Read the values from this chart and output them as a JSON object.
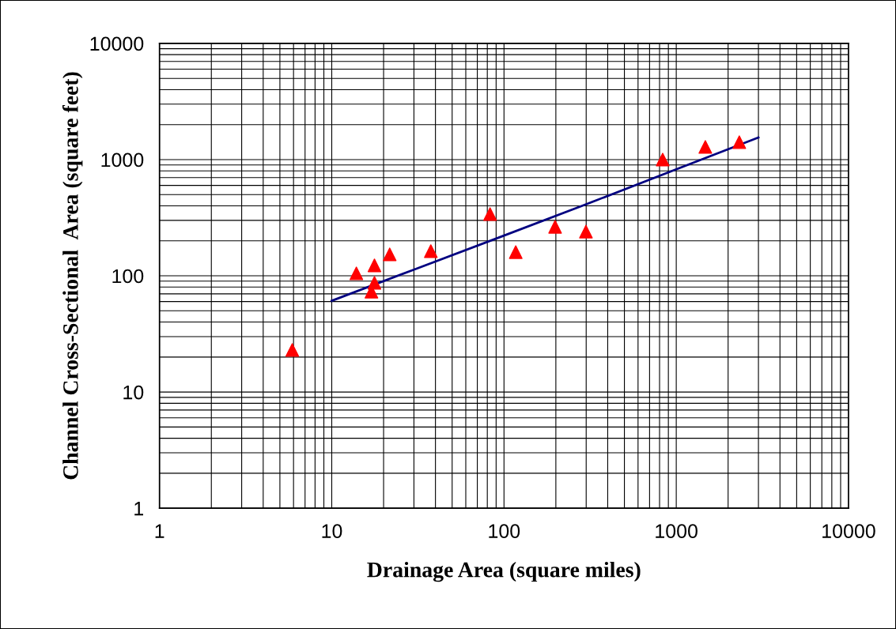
{
  "chart_data": {
    "type": "scatter",
    "xlabel": "Drainage Area (square miles)",
    "ylabel": "Channel Cross-Sectional  Area (square feet)",
    "log": "xy",
    "grid": true,
    "xlim": [
      1,
      10000
    ],
    "ylim": [
      1,
      10000
    ],
    "xticks": [
      1,
      10,
      100,
      1000,
      10000
    ],
    "yticks": [
      1,
      10,
      100,
      1000,
      10000
    ],
    "series": [
      {
        "color": "#ff0000",
        "marker": "triangle",
        "x": [
          5.9,
          13.9,
          17,
          17.7,
          17.7,
          21.7,
          37.6,
          83,
          117,
          198,
          299,
          834,
          1475,
          2323
        ],
        "values": [
          23,
          105,
          73,
          87,
          123,
          153,
          163,
          340,
          160,
          264,
          240,
          1000,
          1285,
          1412
        ]
      },
      {
        "type": "line",
        "color": "#000080",
        "marker": "none",
        "line_style": "solid",
        "x": [
          10,
          30,
          100,
          300,
          1000,
          3000
        ],
        "values": [
          61,
          113,
          222,
          413,
          826,
          1550
        ]
      }
    ]
  }
}
